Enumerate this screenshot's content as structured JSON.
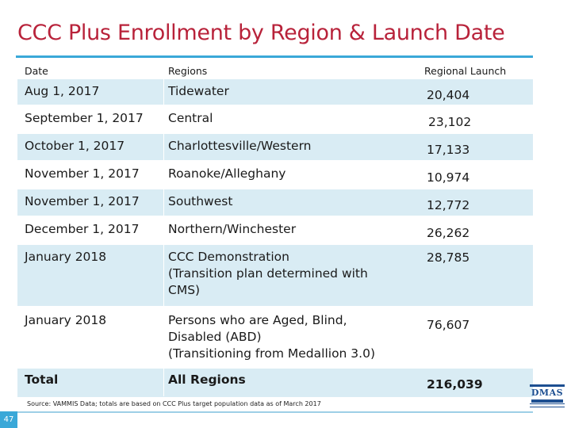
{
  "slide": {
    "title": "CCC Plus Enrollment by Region & Launch Date",
    "page_number": "47",
    "source_note": "Source: VAMMIS Data; totals are based on CCC Plus target population data as of March 2017"
  },
  "table": {
    "headers": {
      "date": "Date",
      "regions": "Regions",
      "launch": "Regional Launch"
    },
    "rows": [
      {
        "date": "Aug 1, 2017",
        "region": "Tidewater",
        "launch": "20,404"
      },
      {
        "date": "September 1, 2017",
        "region": "Central",
        "launch": "23,102"
      },
      {
        "date": "October 1, 2017",
        "region": "Charlottesville/Western",
        "launch": "17,133"
      },
      {
        "date": "November 1, 2017",
        "region": "Roanoke/Alleghany",
        "launch": "10,974"
      },
      {
        "date": "November 1, 2017",
        "region": "Southwest",
        "launch": "12,772"
      },
      {
        "date": "December 1, 2017",
        "region": "Northern/Winchester",
        "launch": "26,262"
      },
      {
        "date": "January 2018",
        "region_lines": [
          "CCC Demonstration",
          "(Transition plan determined with",
          "CMS)"
        ],
        "launch": "28,785"
      },
      {
        "date": "January 2018",
        "region_lines": [
          "Persons who are Aged, Blind,",
          "Disabled (ABD)",
          "(Transitioning from Medallion 3.0)"
        ],
        "launch": "76,607"
      }
    ],
    "total": {
      "date": "Total",
      "region": "All Regions",
      "launch": "216,039"
    }
  },
  "logo": {
    "text": "DMAS",
    "icon": "dmas-logo"
  },
  "colors": {
    "title": "#b8223a",
    "accent": "#3aa8d8",
    "band": "#d9ecf4",
    "logo": "#1d4f91"
  }
}
